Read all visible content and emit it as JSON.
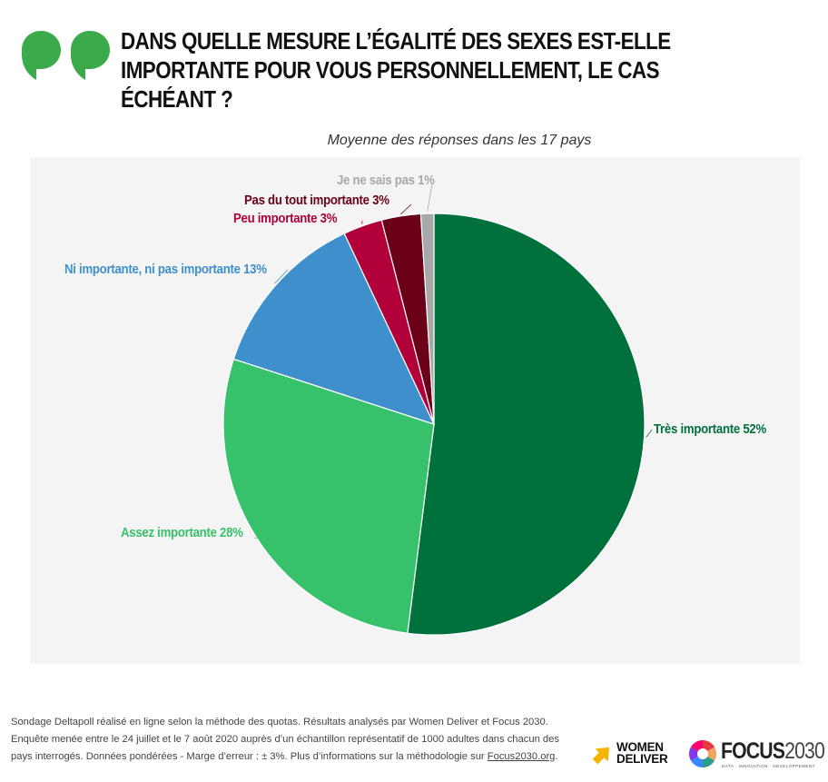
{
  "title": "DANS QUELLE MESURE L’ÉGALITÉ DES SEXES EST-ELLE IMPORTANTE POUR VOUS PERSONNELLEMENT, LE CAS ÉCHÉANT ?",
  "subtitle": "Moyenne des réponses dans les 17 pays",
  "chart_data": {
    "type": "pie",
    "title": "Moyenne des réponses dans les 17 pays",
    "start_angle_deg": 0,
    "direction": "clockwise",
    "slices": [
      {
        "label": "Très importante 52%",
        "name": "Très importante",
        "value": 52,
        "color": "#00703c",
        "label_color": "#00703c"
      },
      {
        "label": "Assez importante 28%",
        "name": "Assez importante",
        "value": 28,
        "color": "#37c16b",
        "label_color": "#37c16b"
      },
      {
        "label": "Ni importante, ni pas importante 13%",
        "name": "Ni importante, ni pas importante",
        "value": 13,
        "color": "#3f8fcc",
        "label_color": "#3f8fcc"
      },
      {
        "label": "Peu importante 3%",
        "name": "Peu importante",
        "value": 3,
        "color": "#b1003a",
        "label_color": "#b1003a"
      },
      {
        "label": "Pas du tout importante 3%",
        "name": "Pas du tout importante",
        "value": 3,
        "color": "#6b0019",
        "label_color": "#6b0019"
      },
      {
        "label": "Je ne sais pas 1%",
        "name": "Je ne sais pas",
        "value": 1,
        "color": "#a8a8a8",
        "label_color": "#a8a8a8"
      }
    ],
    "legend": "none (labels on slices)"
  },
  "footer": {
    "line1": "Sondage Deltapoll réalisé en ligne selon la méthode des quotas. Résultats analysés par Women Deliver et Focus 2030.",
    "line2": "Enquête menée entre le 24 juillet et le 7 août 2020 auprès d’un échantillon représentatif de 1000 adultes dans chacun des",
    "line3": "pays interrogés. Données pondérées - Marge d’erreur : ± 3%. Plus d’informations sur la méthodologie sur ",
    "link": "Focus2030.org",
    "line3_end": "."
  },
  "logos": {
    "women_deliver_line1": "WOMEN",
    "women_deliver_line2": "DELIVER",
    "focus_name": "FOCUS",
    "focus_year": "2030",
    "focus_tagline": "DATA · INNOVATION · DÉVELOPPEMENT"
  },
  "colors": {
    "accent_green": "#3aaa4a",
    "wd_yellow": "#f5b400"
  }
}
